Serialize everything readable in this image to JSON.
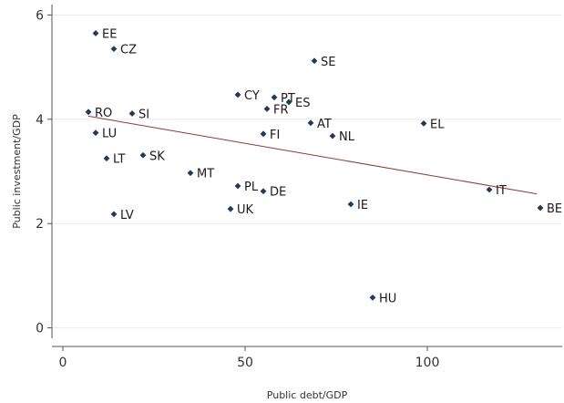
{
  "chart_data": {
    "type": "scatter",
    "title": "",
    "xlabel": "Public debt/GDP",
    "ylabel": "Public investment/GDP",
    "xlim": [
      -3,
      137
    ],
    "ylim": [
      -0.2,
      6.2
    ],
    "xticks": [
      0,
      50,
      100
    ],
    "yticks": [
      0,
      2,
      4,
      6
    ],
    "grid": "horizontal",
    "marker_color": "#1f3b57",
    "fit_line_color": "#8b3a3a",
    "fit_line": {
      "x": [
        7,
        130
      ],
      "y": [
        4.06,
        2.57
      ]
    },
    "points": [
      {
        "label": "EE",
        "x": 9,
        "y": 5.65
      },
      {
        "label": "CZ",
        "x": 14,
        "y": 5.35
      },
      {
        "label": "SE",
        "x": 69,
        "y": 5.12
      },
      {
        "label": "CY",
        "x": 48,
        "y": 4.47
      },
      {
        "label": "PT",
        "x": 58,
        "y": 4.42
      },
      {
        "label": "ES",
        "x": 62,
        "y": 4.33
      },
      {
        "label": "FR",
        "x": 56,
        "y": 4.2
      },
      {
        "label": "RO",
        "x": 7,
        "y": 4.14
      },
      {
        "label": "SI",
        "x": 19,
        "y": 4.11
      },
      {
        "label": "AT",
        "x": 68,
        "y": 3.93
      },
      {
        "label": "EL",
        "x": 99,
        "y": 3.92
      },
      {
        "label": "LU",
        "x": 9,
        "y": 3.74
      },
      {
        "label": "FI",
        "x": 55,
        "y": 3.72
      },
      {
        "label": "NL",
        "x": 74,
        "y": 3.68
      },
      {
        "label": "SK",
        "x": 22,
        "y": 3.31
      },
      {
        "label": "LT",
        "x": 12,
        "y": 3.25
      },
      {
        "label": "MT",
        "x": 35,
        "y": 2.97
      },
      {
        "label": "PL",
        "x": 48,
        "y": 2.72
      },
      {
        "label": "IT",
        "x": 117,
        "y": 2.65
      },
      {
        "label": "DE",
        "x": 55,
        "y": 2.62
      },
      {
        "label": "IE",
        "x": 79,
        "y": 2.37
      },
      {
        "label": "BE",
        "x": 131,
        "y": 2.3
      },
      {
        "label": "UK",
        "x": 46,
        "y": 2.28
      },
      {
        "label": "LV",
        "x": 14,
        "y": 2.18
      },
      {
        "label": "HU",
        "x": 85,
        "y": 0.58
      }
    ]
  }
}
